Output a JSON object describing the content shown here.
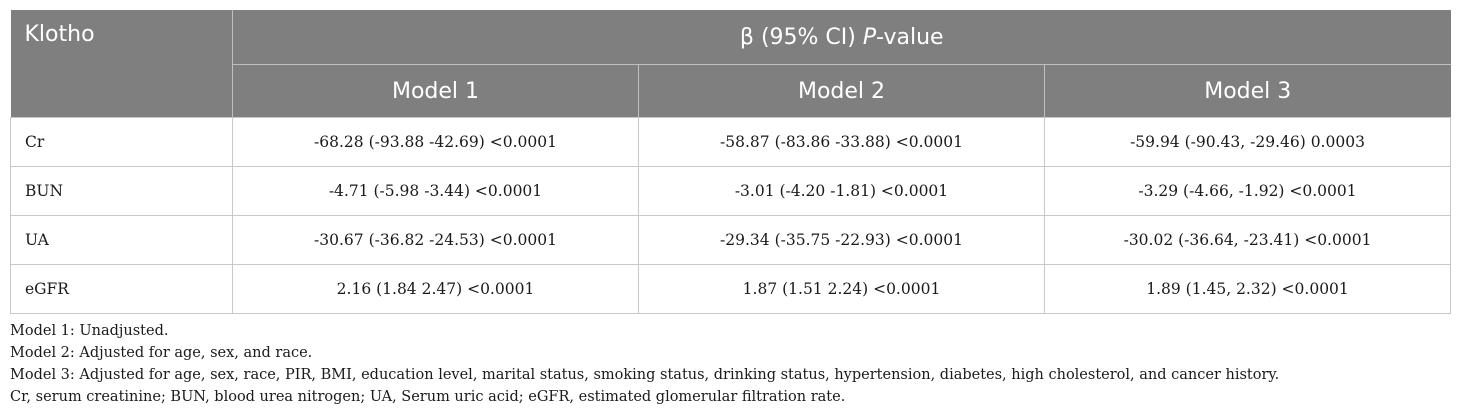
{
  "table": {
    "corner_header": "Klotho",
    "group_header_prefix": "β (95% CI) ",
    "group_header_italic": "P",
    "group_header_suffix": "-value",
    "columns": [
      "Model 1",
      "Model 2",
      "Model 3"
    ],
    "rows": [
      {
        "label": "Cr",
        "cells": [
          "-68.28 (-93.88 -42.69) <0.0001",
          "-58.87 (-83.86 -33.88) <0.0001",
          "-59.94 (-90.43, -29.46) 0.0003"
        ]
      },
      {
        "label": "BUN",
        "cells": [
          "-4.71 (-5.98 -3.44) <0.0001",
          "-3.01 (-4.20 -1.81) <0.0001",
          "-3.29 (-4.66, -1.92) <0.0001"
        ]
      },
      {
        "label": "UA",
        "cells": [
          "-30.67 (-36.82 -24.53) <0.0001",
          "-29.34 (-35.75 -22.93) <0.0001",
          "-30.02 (-36.64, -23.41) <0.0001"
        ]
      },
      {
        "label": "eGFR",
        "cells": [
          "2.16 (1.84 2.47) <0.0001",
          "1.87 (1.51 2.24) <0.0001",
          "1.89 (1.45, 2.32) <0.0001"
        ]
      }
    ]
  },
  "footnotes": [
    "Model 1: Unadjusted.",
    "Model 2: Adjusted for age, sex, and race.",
    "Model 3: Adjusted for age, sex, race, PIR, BMI, education level, marital status, smoking status, drinking status, hypertension, diabetes, high cholesterol, and cancer history.",
    "Cr, serum creatinine; BUN, blood urea nitrogen; UA, Serum uric acid; eGFR, estimated glomerular filtration rate."
  ],
  "colors": {
    "header_background": "#7f7f7f",
    "header_text": "#ffffff",
    "grid_line": "#c8c8c8"
  }
}
